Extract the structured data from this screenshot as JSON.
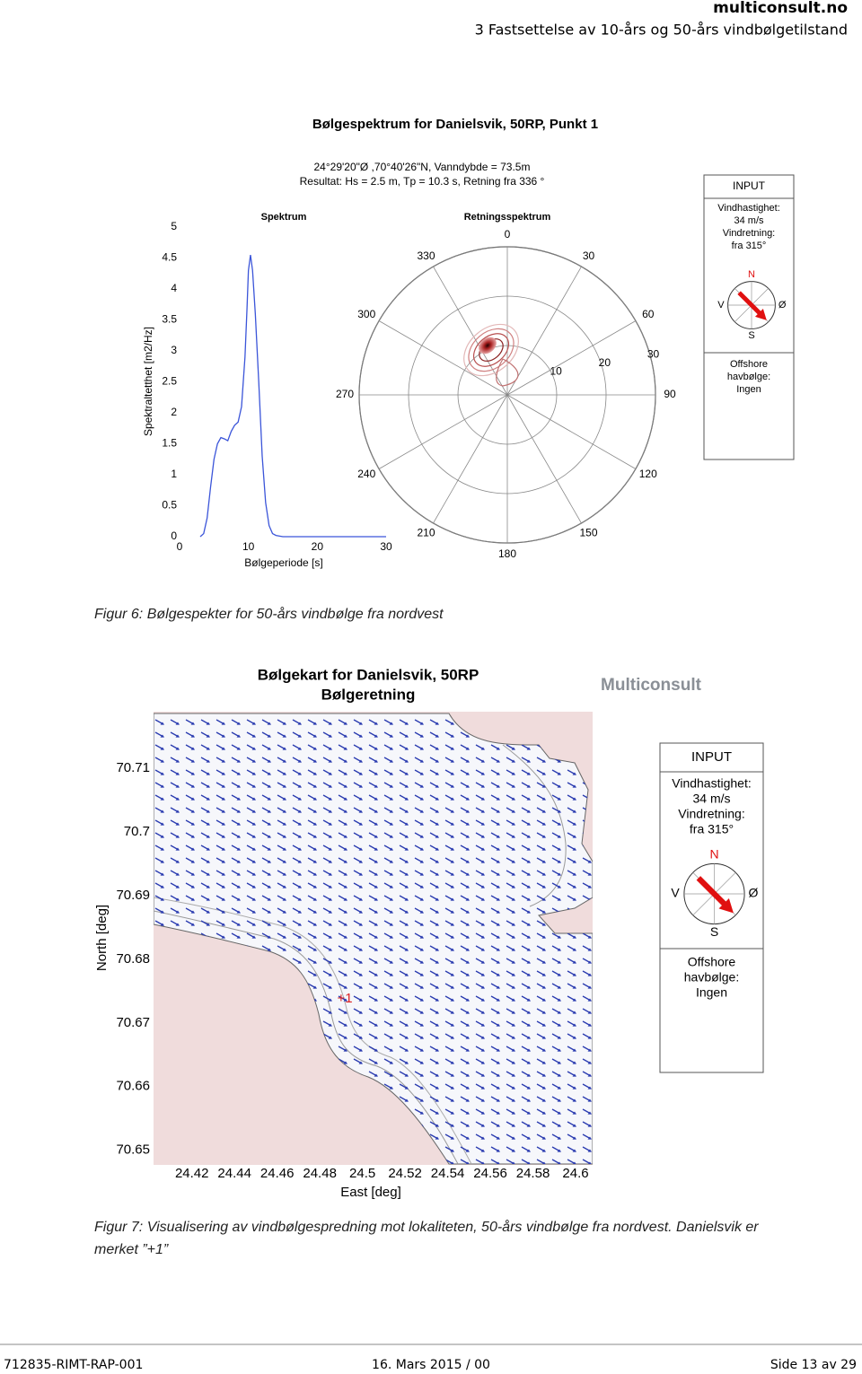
{
  "header": {
    "site": "multiconsult.no",
    "section": "3 Fastsettelse av 10-års og 50-års vindbølgetilstand"
  },
  "figure1": {
    "title": "Bølgespektrum for Danielsvik, 50RP, Punkt 1",
    "subtitle": [
      "24°29'20\"Ø ,70°40'26\"N, Vanndybde = 73.5m",
      "Resultat: Hs = 2.5 m, Tp = 10.3 s, Retning fra 336 °"
    ],
    "spectrum": {
      "type": "line",
      "title": "Spektrum",
      "xlabel": "Bølgeperiode [s]",
      "ylabel": "Spektraltetthet [m2/Hz]",
      "color": "#3b55d9",
      "x": [
        3,
        3.5,
        4,
        4.5,
        5,
        5.5,
        6,
        6.5,
        7,
        7.5,
        8,
        8.5,
        9,
        9.5,
        9.8,
        10,
        10.3,
        10.6,
        11,
        11.5,
        12,
        12.5,
        13,
        13.5,
        14,
        15,
        20,
        25,
        30
      ],
      "values": [
        0,
        0.05,
        0.3,
        0.8,
        1.25,
        1.5,
        1.6,
        1.58,
        1.55,
        1.7,
        1.8,
        1.85,
        2.1,
        2.9,
        3.7,
        4.3,
        4.55,
        4.3,
        3.6,
        2.5,
        1.3,
        0.55,
        0.18,
        0.05,
        0.02,
        0,
        0,
        0,
        0
      ],
      "xlim": [
        0,
        30
      ],
      "ylim": [
        0,
        5
      ],
      "xticks": [
        0,
        10,
        20,
        30
      ],
      "yticks": [
        0,
        0.5,
        1,
        1.5,
        2,
        2.5,
        3,
        3.5,
        4,
        4.5,
        5
      ]
    },
    "polar": {
      "type": "polar",
      "title": "Retningsspektrum",
      "angles": [
        0,
        30,
        60,
        90,
        120,
        150,
        180,
        210,
        240,
        270,
        300,
        330
      ],
      "rlim": [
        0,
        30
      ],
      "rticks": [
        10,
        20,
        30
      ]
    },
    "input": {
      "title": "INPUT",
      "lines": [
        "Vindhastighet:",
        "34 m/s",
        "Vindretning:",
        "fra 315°"
      ],
      "compass": [
        "N",
        "V",
        "Ø",
        "S"
      ],
      "offshore": [
        "Offshore",
        "havbølge:",
        "Ingen"
      ]
    },
    "caption": "Figur 6: Bølgespekter for 50-års vindbølge fra nordvest"
  },
  "figure2": {
    "title": "Bølgekart for Danielsvik, 50RP",
    "subtitle": "Bølgeretning",
    "logo": "Multiconsult",
    "map": {
      "type": "map",
      "xlabel": "East [deg]",
      "ylabel": "North [deg]",
      "xlim": [
        24.402,
        24.608
      ],
      "ylim": [
        70.6477,
        70.7189
      ],
      "xticks": [
        24.42,
        24.44,
        24.46,
        24.48,
        24.5,
        24.52,
        24.54,
        24.56,
        24.58,
        24.6
      ],
      "yticks": [
        70.65,
        70.66,
        70.67,
        70.68,
        70.69,
        70.7,
        70.71
      ],
      "marker": "+1"
    },
    "input": {
      "title": "INPUT",
      "lines": [
        "Vindhastighet:",
        "34 m/s",
        "Vindretning:",
        "fra 315°"
      ],
      "compass": [
        "N",
        "V",
        "Ø",
        "S"
      ],
      "offshore": [
        "Offshore",
        "havbølge:",
        "Ingen"
      ]
    },
    "caption_lines": [
      "Figur 7: Visualisering av vindbølgespredning mot lokaliteten, 50-års vindbølge fra nordvest. Danielsvik er",
      "merket ”+1”"
    ]
  },
  "footer": {
    "left": "712835-RIMT-RAP-001",
    "center": "16. Mars 2015 / 00",
    "right": "Side 13 av 29"
  }
}
